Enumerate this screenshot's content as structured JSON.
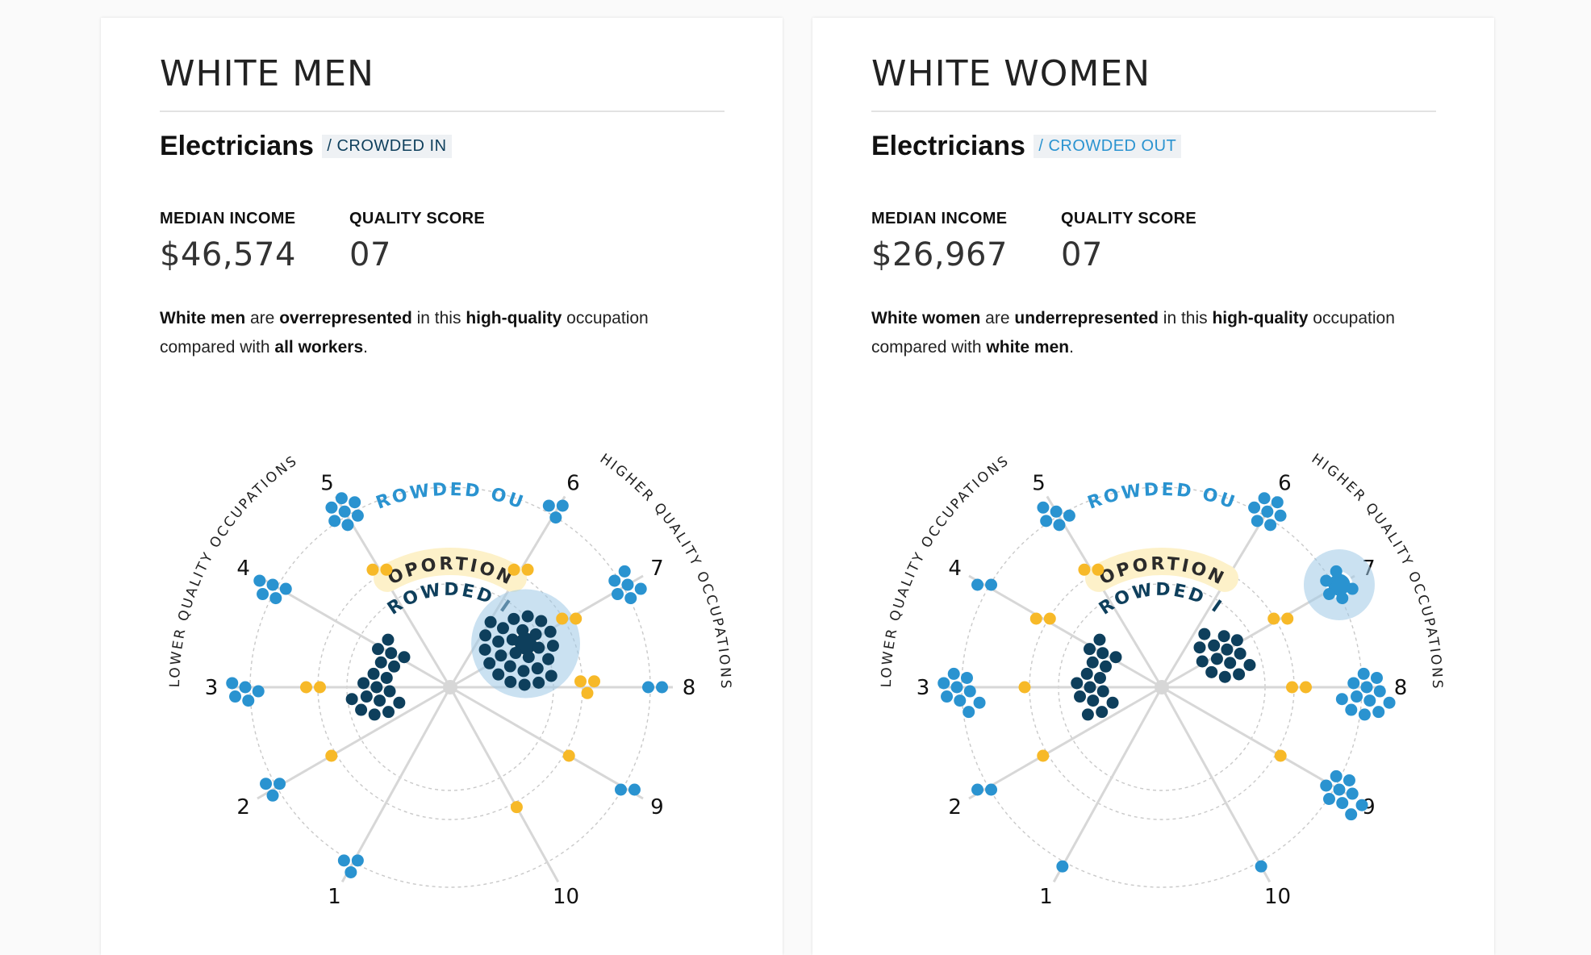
{
  "panels": [
    {
      "group_title": "WHITE MEN",
      "occupation": "Electricians",
      "status_tag": "/ CROWDED IN",
      "status": "in",
      "median_income_label": "MEDIAN INCOME",
      "median_income": "$46,574",
      "quality_score_label": "QUALITY SCORE",
      "quality_score": "07",
      "description": {
        "subject": "White men",
        "t1": " are ",
        "representation": "overrepresented",
        "t2": " in this ",
        "quality": "high-quality",
        "t3": " occupation compared with ",
        "comparison": "all workers",
        "t4": "."
      },
      "chart_data": {
        "type": "radial-dot",
        "left_axis_label": "← LOWER QUALITY OCCUPATIONS ←",
        "right_axis_label": "→ HIGHER QUALITY OCCUPATIONS →",
        "ring_labels": {
          "outer": "CROWDED OUT",
          "middle": "PROPORTIONAL",
          "inner": "CROWDED IN"
        },
        "spokes": [
          "1",
          "2",
          "3",
          "4",
          "5",
          "6",
          "7",
          "8",
          "9",
          "10"
        ],
        "counts": {
          "crowded_in": [
            0,
            0,
            12,
            6,
            0,
            0,
            28,
            0,
            0,
            0
          ],
          "proportional": [
            0,
            1,
            2,
            0,
            2,
            2,
            2,
            3,
            1,
            1
          ],
          "crowded_out": [
            3,
            3,
            5,
            5,
            7,
            3,
            6,
            2,
            2,
            0
          ]
        },
        "highlight": {
          "spoke": "7",
          "ring": "crowded_in"
        }
      }
    },
    {
      "group_title": "WHITE WOMEN",
      "occupation": "Electricians",
      "status_tag": "/ CROWDED OUT",
      "status": "out",
      "median_income_label": "MEDIAN INCOME",
      "median_income": "$26,967",
      "quality_score_label": "QUALITY SCORE",
      "quality_score": "07",
      "description": {
        "subject": "White women",
        "t1": " are ",
        "representation": "underrepresented",
        "t2": " in this ",
        "quality": "high-quality",
        "t3": " occupation compared with ",
        "comparison": "white men",
        "t4": "."
      },
      "chart_data": {
        "type": "radial-dot",
        "left_axis_label": "← LOWER QUALITY OCCUPATIONS ←",
        "right_axis_label": "→ HIGHER QUALITY OCCUPATIONS →",
        "ring_labels": {
          "outer": "CROWDED OUT",
          "middle": "PROPORTIONAL",
          "inner": "CROWDED IN"
        },
        "spokes": [
          "1",
          "2",
          "3",
          "4",
          "5",
          "6",
          "7",
          "8",
          "9",
          "10"
        ],
        "counts": {
          "crowded_in": [
            0,
            0,
            10,
            6,
            0,
            0,
            14,
            0,
            0,
            0
          ],
          "proportional": [
            0,
            1,
            1,
            2,
            2,
            0,
            2,
            2,
            1,
            0
          ],
          "crowded_out": [
            1,
            2,
            9,
            2,
            5,
            7,
            6,
            12,
            9,
            1
          ]
        },
        "highlight": {
          "spoke": "7",
          "ring": "crowded_out"
        }
      }
    }
  ],
  "colors": {
    "crowded_in": "#0e3f5c",
    "proportional": "#f7b928",
    "crowded_out": "#2a93d0",
    "proportional_band": "#fdf1c9",
    "spoke": "#d7d7d7",
    "ring": "#c9c9c9"
  }
}
